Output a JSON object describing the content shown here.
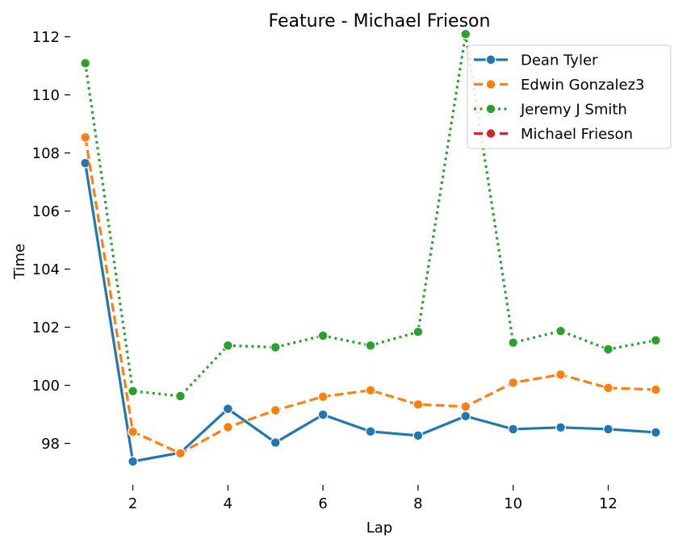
{
  "chart_data": {
    "type": "line",
    "title": "Feature - Michael Frieson",
    "xlabel": "Lap",
    "ylabel": "Time",
    "xlim": [
      0.7,
      13.3
    ],
    "ylim": [
      96.6,
      112.1
    ],
    "xticks": [
      2,
      4,
      6,
      8,
      10,
      12
    ],
    "yticks": [
      98,
      100,
      102,
      104,
      106,
      108,
      110,
      112
    ],
    "grid": false,
    "legend_position": "top-right",
    "series": [
      {
        "name": "Dean Tyler",
        "color": "#1f77b4",
        "dash": "solid",
        "x": [
          1,
          2,
          3,
          4,
          5,
          6,
          7,
          8,
          9,
          10,
          11,
          12,
          13
        ],
        "values": [
          107.65,
          97.38,
          97.68,
          99.19,
          98.03,
          98.99,
          98.41,
          98.27,
          98.94,
          98.49,
          98.55,
          98.49,
          98.38
        ]
      },
      {
        "name": "Edwin Gonzalez3",
        "color": "#ff7f0e",
        "dash": "dashed",
        "x": [
          1,
          2,
          3,
          4,
          5,
          6,
          7,
          8,
          9,
          10,
          11,
          12,
          13
        ],
        "values": [
          108.54,
          98.4,
          97.66,
          98.56,
          99.14,
          99.61,
          99.83,
          99.34,
          99.27,
          100.09,
          100.37,
          99.91,
          99.85
        ]
      },
      {
        "name": "Jeremy J Smith",
        "color": "#2ca02c",
        "dash": "dotted",
        "x": [
          1,
          2,
          3,
          4,
          5,
          6,
          7,
          8,
          9,
          10,
          11,
          12,
          13
        ],
        "values": [
          111.09,
          99.8,
          99.63,
          101.37,
          101.31,
          101.71,
          101.37,
          101.84,
          112.09,
          101.47,
          101.87,
          101.24,
          101.55
        ]
      },
      {
        "name": "Michael Frieson",
        "color": "#d62728",
        "dash": "dashed",
        "x": [],
        "values": []
      }
    ]
  }
}
